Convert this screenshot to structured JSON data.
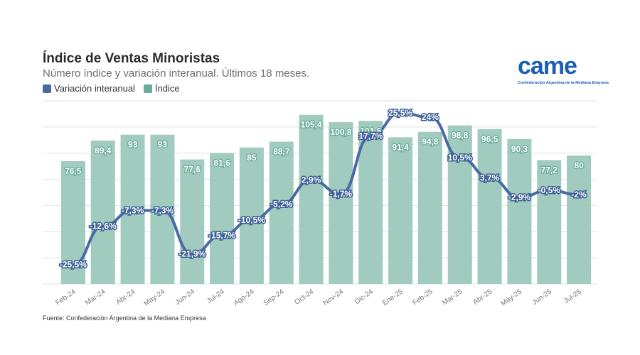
{
  "header": {
    "title": "Índice de Ventas Minoristas",
    "subtitle": "Número índice y variación interanual. Últimos 18 meses."
  },
  "legend": {
    "items": [
      {
        "label": "Variación interanual",
        "color": "#4a6aa5"
      },
      {
        "label": "Índice",
        "color": "#6aab99"
      }
    ]
  },
  "logo": {
    "text": "came",
    "subtitle": "Confederación Argentina de la Mediana Empresa"
  },
  "footer": {
    "source": "Fuente: Confederación Argentina de la Mediana Empresa"
  },
  "chart_data": {
    "type": "bar",
    "categories": [
      "Feb-24",
      "Mar-24",
      "Abr-24",
      "May-24",
      "Jun-24",
      "Jul-24",
      "Ago-24",
      "Sep-24",
      "Oct-24",
      "Nov-24",
      "Dic-24",
      "Ene-25",
      "Feb-25",
      "Mar-25",
      "Abr-25",
      "May-25",
      "Jun-25",
      "Jul-25"
    ],
    "series": [
      {
        "name": "Índice",
        "type": "bar",
        "color": "#a0cbbe",
        "values": [
          76.5,
          89.4,
          93,
          93,
          77.6,
          81.6,
          85,
          88.7,
          105.4,
          100.8,
          101.6,
          91.4,
          94.8,
          98.8,
          96.5,
          90.3,
          77.2,
          80
        ],
        "labels": [
          "76,5",
          "89,4",
          "93",
          "93",
          "77,6",
          "81,6",
          "85",
          "88,7",
          "105,4",
          "100,8",
          "101,6",
          "91,4",
          "94,8",
          "98,8",
          "96,5",
          "90,3",
          "77,2",
          "80"
        ]
      },
      {
        "name": "Variación interanual",
        "type": "line",
        "color": "#4a6aa5",
        "values": [
          -25.5,
          -12.6,
          -7.3,
          -7.3,
          -21.9,
          -15.7,
          -10.5,
          -5.2,
          2.9,
          -1.7,
          17.7,
          25.5,
          24,
          10.5,
          3.7,
          -2.9,
          -0.5,
          -2
        ],
        "labels": [
          "-25,5%",
          "-12,6%",
          "-7,3%",
          "-7,3%",
          "-21,9%",
          "-15,7%",
          "-10,5%",
          "-5,2%",
          "2,9%",
          "-1,7%",
          "17,7%",
          "25,5%",
          "24%",
          "10,5%",
          "3,7%",
          "-2,9%",
          "-0,5%",
          "-2%"
        ]
      }
    ],
    "grid": true,
    "legend_position": "top-left"
  }
}
